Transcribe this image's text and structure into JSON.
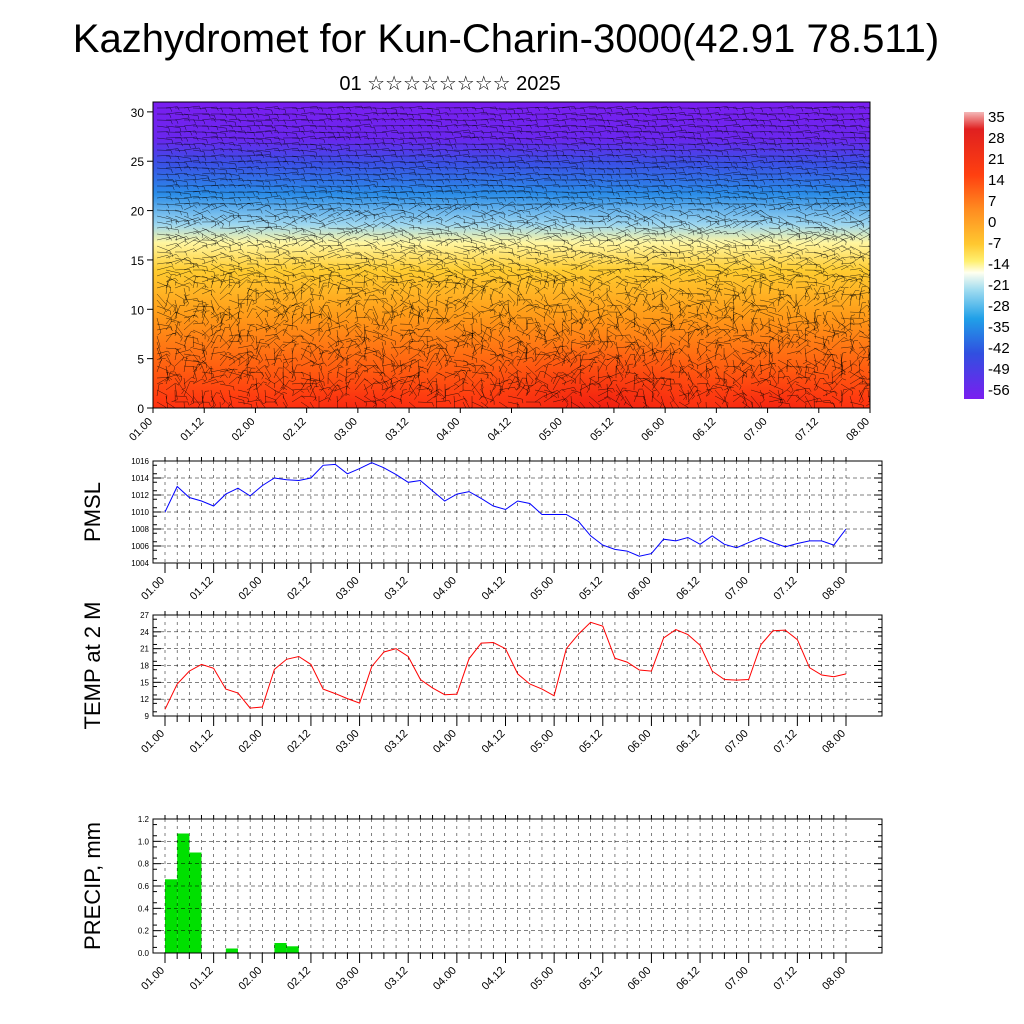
{
  "title": "Kazhydromet for Kun-Charin-3000(42.91 78.511)",
  "subtitle": "01 ☆☆☆☆☆☆☆☆ 2025",
  "colors": {
    "pmsl": "#0000ff",
    "temp": "#ff0000",
    "precip": "#00e000",
    "grid": "#000000"
  },
  "chart_data": [
    {
      "type": "heatmap",
      "name": "vertical cross-section with wind barbs",
      "x_tick_labels": [
        "01.00",
        "01.12",
        "02.00",
        "02.12",
        "03.00",
        "03.12",
        "04.00",
        "04.12",
        "05.00",
        "05.12",
        "06.00",
        "06.12",
        "07.00",
        "07.12",
        "08.00"
      ],
      "y_tick_labels": [
        "0",
        "5",
        "10",
        "15",
        "20",
        "25",
        "30"
      ],
      "ylim": [
        0,
        31
      ],
      "colorbar_labels": [
        "35",
        "28",
        "21",
        "14",
        "7",
        "0",
        "-7",
        "-14",
        "-21",
        "-28",
        "-35",
        "-42",
        "-49",
        "-56"
      ],
      "colorbar_range": [
        -60,
        38
      ]
    },
    {
      "type": "line",
      "ylabel": "PMSL",
      "ylim": [
        1004,
        1016
      ],
      "y_tick_labels": [
        "1004",
        "1006",
        "1008",
        "1010",
        "1012",
        "1014",
        "1016"
      ],
      "x_tick_labels": [
        "01.00",
        "01.12",
        "02.00",
        "02.12",
        "03.00",
        "03.12",
        "04.00",
        "04.12",
        "05.00",
        "05.12",
        "06.00",
        "06.12",
        "07.00",
        "07.12",
        "08.00"
      ],
      "values": [
        1010.0,
        1013.0,
        1011.7,
        1011.3,
        1010.7,
        1012.1,
        1012.8,
        1011.9,
        1013.1,
        1014.0,
        1013.8,
        1013.7,
        1014.0,
        1015.5,
        1015.6,
        1014.5,
        1015.1,
        1015.8,
        1015.2,
        1014.4,
        1013.5,
        1013.7,
        1012.5,
        1011.3,
        1012.1,
        1012.4,
        1011.6,
        1010.7,
        1010.3,
        1011.3,
        1011.0,
        1009.7,
        1009.7,
        1009.7,
        1008.9,
        1007.2,
        1006.1,
        1005.6,
        1005.4,
        1004.8,
        1005.1,
        1006.8,
        1006.6,
        1007.0,
        1006.2,
        1007.2,
        1006.2,
        1005.8,
        1006.4,
        1007.0,
        1006.4,
        1005.9,
        1006.3,
        1006.6,
        1006.6,
        1006.1,
        1008.0
      ],
      "xlim": [
        0,
        56
      ]
    },
    {
      "type": "line",
      "ylabel": "TEMP at 2 M",
      "ylim": [
        9,
        27
      ],
      "y_tick_labels": [
        "9",
        "12",
        "15",
        "18",
        "21",
        "24",
        "27"
      ],
      "x_tick_labels": [
        "01.00",
        "01.12",
        "02.00",
        "02.12",
        "03.00",
        "03.12",
        "04.00",
        "04.12",
        "05.00",
        "05.12",
        "06.00",
        "06.12",
        "07.00",
        "07.12",
        "08.00"
      ],
      "values": [
        10.2,
        14.7,
        17.0,
        18.2,
        17.5,
        13.8,
        13.1,
        10.4,
        10.6,
        17.3,
        19.1,
        19.6,
        18.2,
        13.8,
        13.0,
        12.1,
        11.3,
        17.8,
        20.4,
        21.0,
        19.6,
        15.5,
        14.0,
        12.8,
        12.9,
        19.2,
        22.0,
        22.1,
        21.0,
        16.5,
        14.7,
        13.8,
        12.6,
        21.0,
        23.6,
        25.7,
        25.0,
        19.3,
        18.6,
        17.2,
        17.0,
        22.9,
        24.4,
        23.5,
        21.6,
        17.0,
        15.5,
        15.4,
        15.5,
        21.7,
        24.2,
        24.3,
        22.6,
        17.6,
        16.3,
        16.0,
        16.5
      ],
      "xlim": [
        0,
        56
      ]
    },
    {
      "type": "bar",
      "ylabel": "PRECIP, mm",
      "ylim": [
        0,
        1.2
      ],
      "y_tick_labels": [
        "0.0",
        "0.2",
        "0.4",
        "0.6",
        "0.8",
        "1.0",
        "1.2"
      ],
      "x_tick_labels": [
        "01.00",
        "01.12",
        "02.00",
        "02.12",
        "03.00",
        "03.12",
        "04.00",
        "04.12",
        "05.00",
        "05.12",
        "06.00",
        "06.12",
        "07.00",
        "07.12",
        "08.00"
      ],
      "values": [
        0.66,
        1.07,
        0.9,
        0,
        0,
        0.04,
        0,
        0,
        0,
        0.09,
        0.06,
        0,
        0,
        0,
        0,
        0,
        0,
        0,
        0,
        0,
        0,
        0,
        0,
        0,
        0,
        0,
        0,
        0,
        0,
        0,
        0,
        0,
        0,
        0,
        0,
        0,
        0,
        0,
        0,
        0,
        0,
        0,
        0,
        0,
        0,
        0,
        0,
        0,
        0,
        0,
        0,
        0,
        0,
        0,
        0,
        0,
        0
      ],
      "xlim": [
        0,
        56
      ]
    }
  ]
}
